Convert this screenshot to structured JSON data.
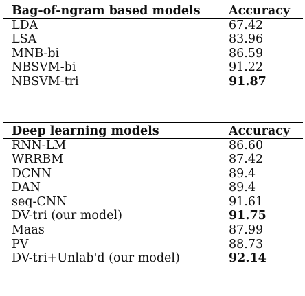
{
  "tables": [
    {
      "header": {
        "model": "Bag-of-ngram based models",
        "accuracy": "Accuracy"
      },
      "rows": [
        {
          "model": "LDA",
          "accuracy": "67.42",
          "bold": false
        },
        {
          "model": "LSA",
          "accuracy": "83.96",
          "bold": false
        },
        {
          "model": "MNB-bi",
          "accuracy": "86.59",
          "bold": false
        },
        {
          "model": "NBSVM-bi",
          "accuracy": "91.22",
          "bold": false
        },
        {
          "model": "NBSVM-tri",
          "accuracy": "91.87",
          "bold": true
        }
      ]
    },
    {
      "header": {
        "model": "Deep learning models",
        "accuracy": "Accuracy"
      },
      "rows": [
        {
          "model": "RNN-LM",
          "accuracy": "86.60",
          "bold": false
        },
        {
          "model": "WRRBM",
          "accuracy": "87.42",
          "bold": false
        },
        {
          "model": "DCNN",
          "accuracy": "89.4",
          "bold": false
        },
        {
          "model": "DAN",
          "accuracy": "89.4",
          "bold": false
        },
        {
          "model": "seq-CNN",
          "accuracy": "91.61",
          "bold": false
        },
        {
          "model": "DV-tri (our model)",
          "accuracy": "91.75",
          "bold": true
        },
        {
          "model": "Maas",
          "accuracy": "87.99",
          "bold": false,
          "separator": true
        },
        {
          "model": "PV",
          "accuracy": "88.73",
          "bold": false
        },
        {
          "model": "DV-tri+Unlab'd (our model)",
          "accuracy": "92.14",
          "bold": true
        }
      ]
    }
  ]
}
